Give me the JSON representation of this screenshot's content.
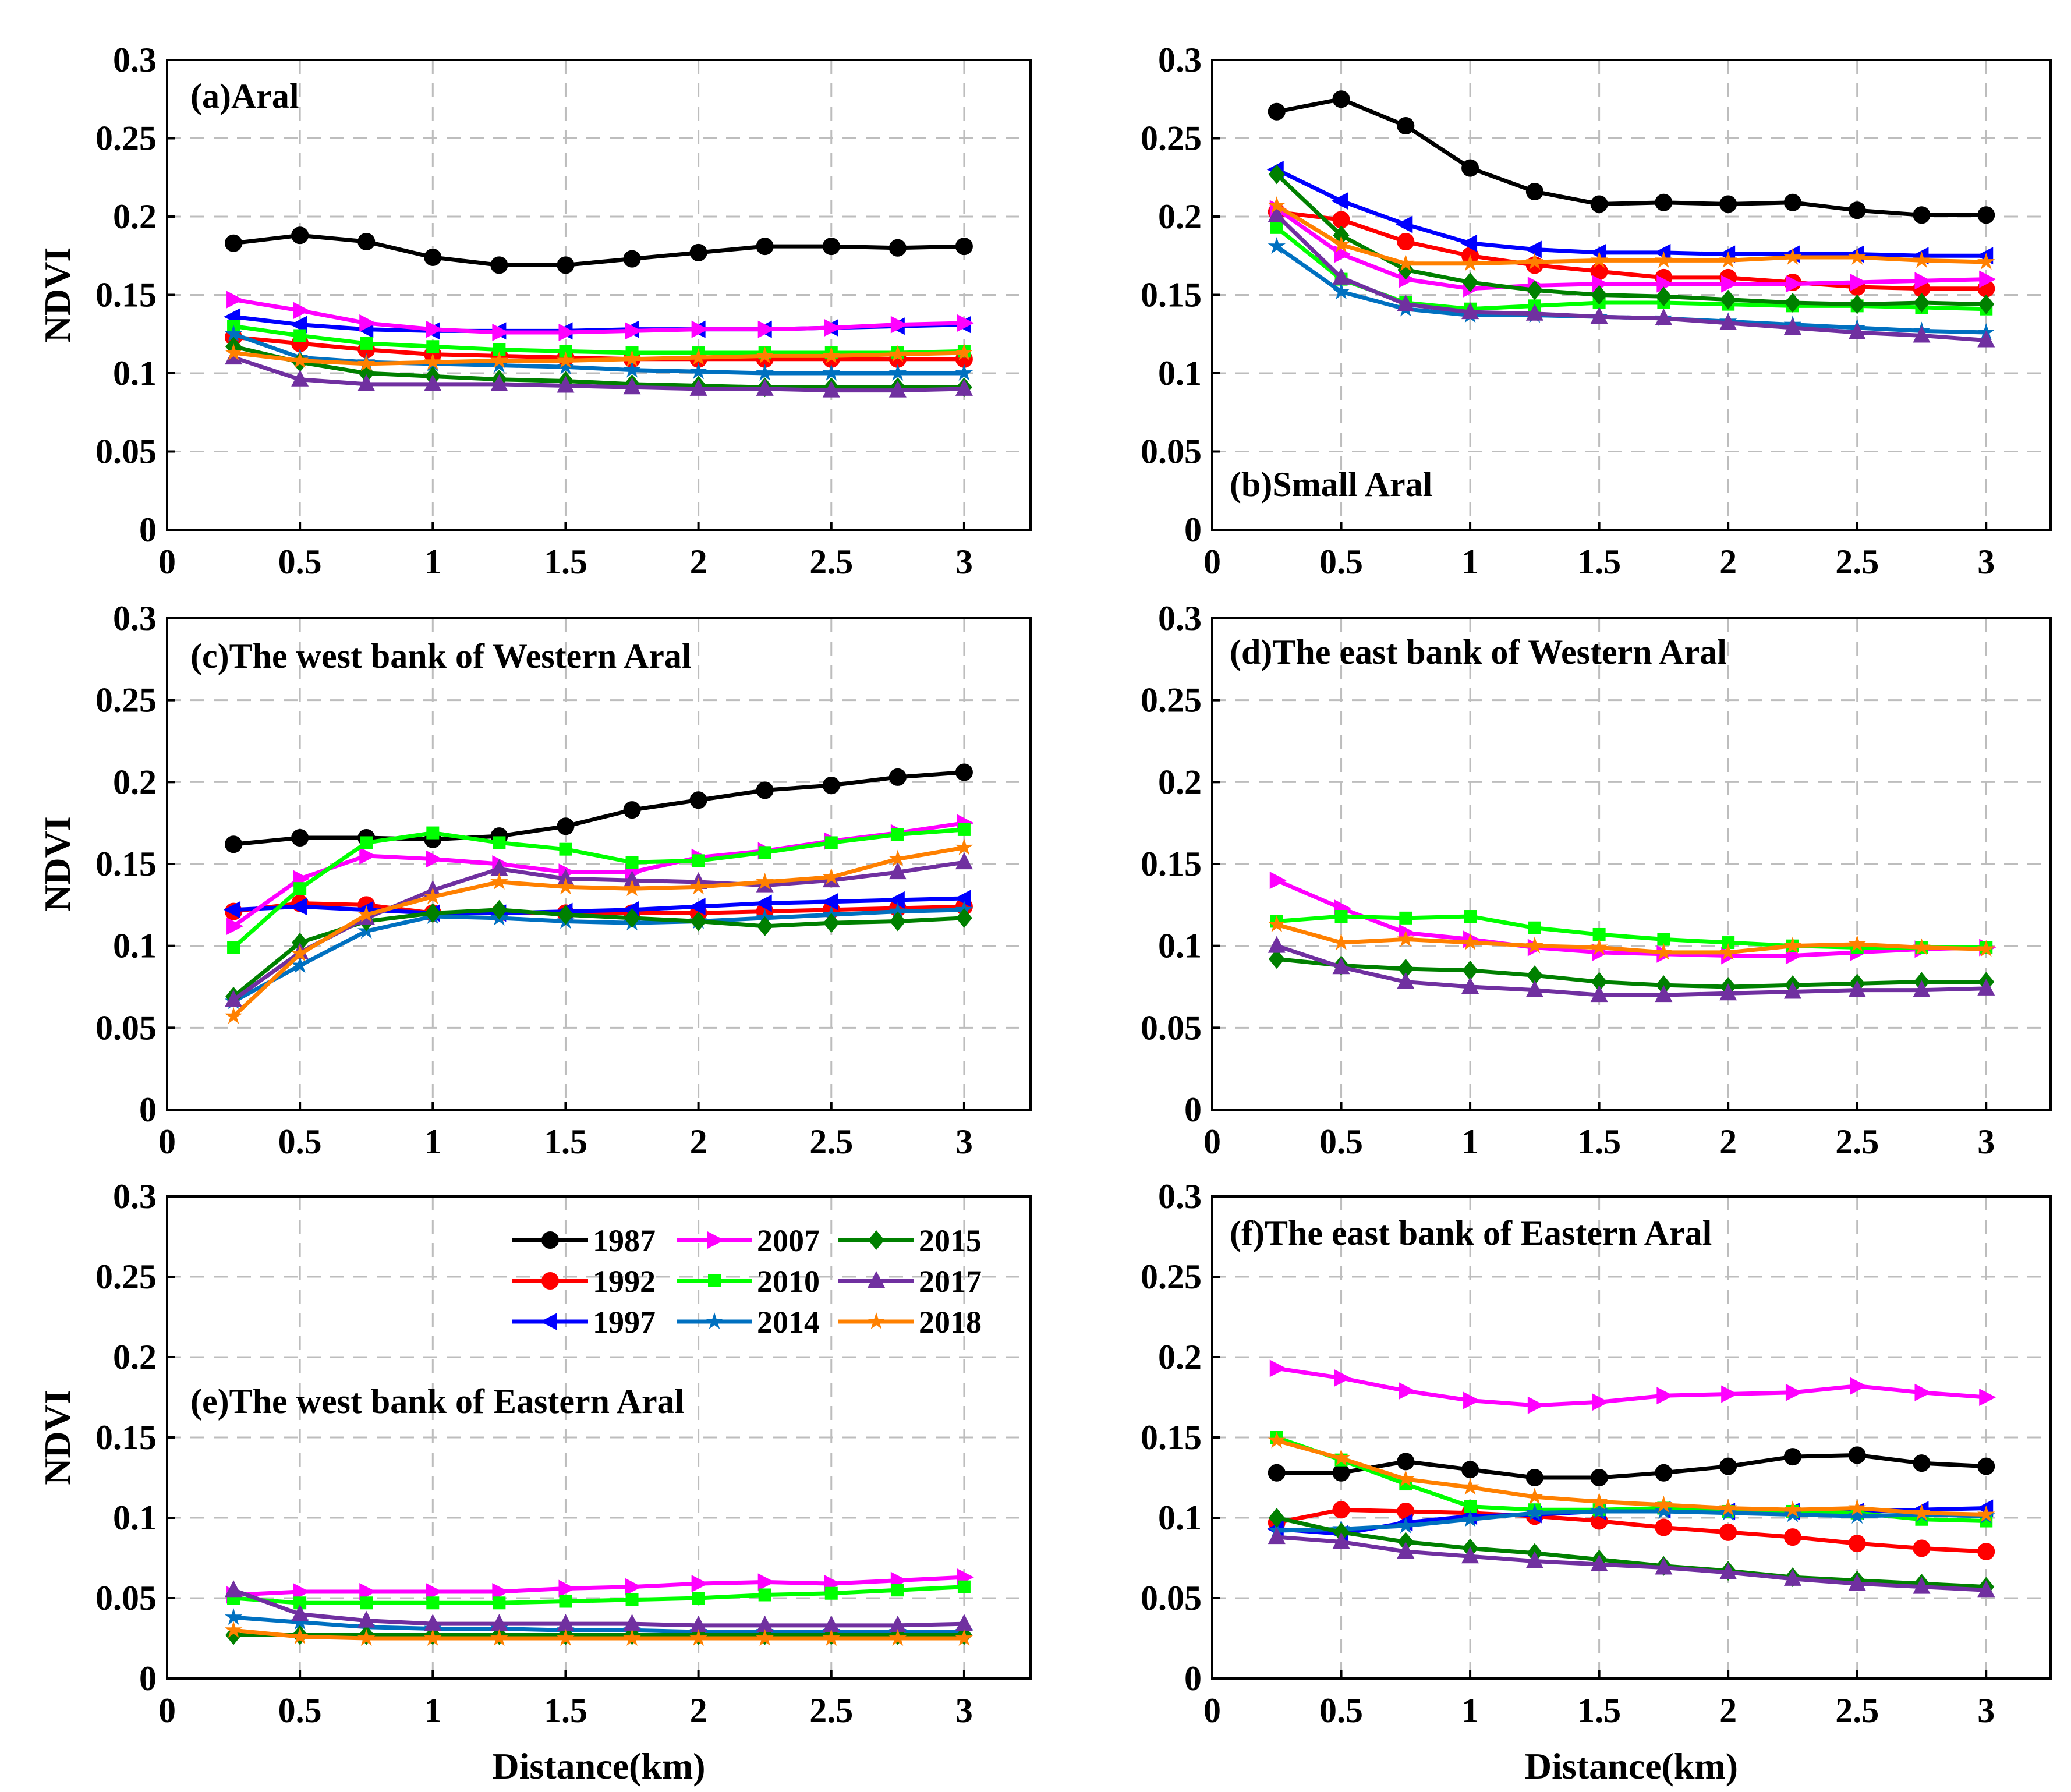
{
  "figure": {
    "x_title": "Distance(km)",
    "y_title": "NDVI",
    "legend": [
      {
        "label": "1987",
        "color": "#000000",
        "marker": "circle"
      },
      {
        "label": "1992",
        "color": "#ff0000",
        "marker": "circle"
      },
      {
        "label": "1997",
        "color": "#0000ff",
        "marker": "triangle-left"
      },
      {
        "label": "2007",
        "color": "#ff00ff",
        "marker": "triangle-right"
      },
      {
        "label": "2010",
        "color": "#00ff00",
        "marker": "square"
      },
      {
        "label": "2014",
        "color": "#0070c0",
        "marker": "star"
      },
      {
        "label": "2015",
        "color": "#008000",
        "marker": "diamond"
      },
      {
        "label": "2017",
        "color": "#7030a0",
        "marker": "triangle-up"
      },
      {
        "label": "2018",
        "color": "#ff8000",
        "marker": "star"
      }
    ]
  },
  "chart_data": [
    {
      "type": "line",
      "title": "(a)Aral",
      "xlabel": "",
      "ylabel": "NDVI",
      "xlim": [
        0,
        3.25
      ],
      "ylim": [
        0,
        0.3
      ],
      "xticks": [
        "0",
        "0.5",
        "1",
        "1.5",
        "2",
        "2.5",
        "3"
      ],
      "yticks": [
        "0",
        "0.05",
        "0.1",
        "0.15",
        "0.2",
        "0.25",
        "0.3"
      ],
      "x": [
        0.25,
        0.5,
        0.75,
        1.0,
        1.25,
        1.5,
        1.75,
        2.0,
        2.25,
        2.5,
        2.75,
        3.0
      ],
      "grid": true,
      "series": [
        {
          "name": "1987",
          "values": [
            0.183,
            0.188,
            0.184,
            0.174,
            0.169,
            0.169,
            0.173,
            0.177,
            0.181,
            0.181,
            0.18,
            0.181
          ]
        },
        {
          "name": "1992",
          "values": [
            0.123,
            0.119,
            0.115,
            0.112,
            0.111,
            0.11,
            0.109,
            0.109,
            0.109,
            0.109,
            0.109,
            0.109
          ]
        },
        {
          "name": "1997",
          "values": [
            0.136,
            0.131,
            0.128,
            0.127,
            0.127,
            0.127,
            0.128,
            0.128,
            0.128,
            0.129,
            0.13,
            0.131
          ]
        },
        {
          "name": "2007",
          "values": [
            0.147,
            0.14,
            0.132,
            0.128,
            0.126,
            0.126,
            0.127,
            0.128,
            0.128,
            0.129,
            0.131,
            0.132
          ]
        },
        {
          "name": "2010",
          "values": [
            0.13,
            0.124,
            0.119,
            0.117,
            0.115,
            0.114,
            0.113,
            0.113,
            0.113,
            0.113,
            0.113,
            0.114
          ]
        },
        {
          "name": "2014",
          "values": [
            0.125,
            0.11,
            0.107,
            0.106,
            0.105,
            0.104,
            0.102,
            0.101,
            0.1,
            0.1,
            0.1,
            0.1
          ]
        },
        {
          "name": "2015",
          "values": [
            0.117,
            0.107,
            0.1,
            0.098,
            0.096,
            0.095,
            0.093,
            0.092,
            0.091,
            0.091,
            0.091,
            0.091
          ]
        },
        {
          "name": "2017",
          "values": [
            0.11,
            0.096,
            0.093,
            0.093,
            0.093,
            0.092,
            0.091,
            0.09,
            0.09,
            0.089,
            0.089,
            0.09
          ]
        },
        {
          "name": "2018",
          "values": [
            0.113,
            0.108,
            0.106,
            0.107,
            0.108,
            0.108,
            0.109,
            0.11,
            0.111,
            0.111,
            0.112,
            0.113
          ]
        }
      ]
    },
    {
      "type": "line",
      "title": "(b)Small Aral",
      "xlabel": "",
      "ylabel": "",
      "xlim": [
        0,
        3.25
      ],
      "ylim": [
        0,
        0.3
      ],
      "xticks": [
        "0",
        "0.5",
        "1",
        "1.5",
        "2",
        "2.5",
        "3"
      ],
      "yticks": [
        "0",
        "0.05",
        "0.1",
        "0.15",
        "0.2",
        "0.25",
        "0.3"
      ],
      "x": [
        0.25,
        0.5,
        0.75,
        1.0,
        1.25,
        1.5,
        1.75,
        2.0,
        2.25,
        2.5,
        2.75,
        3.0
      ],
      "grid": true,
      "series": [
        {
          "name": "1987",
          "values": [
            0.267,
            0.275,
            0.258,
            0.231,
            0.216,
            0.208,
            0.209,
            0.208,
            0.209,
            0.204,
            0.201,
            0.201
          ]
        },
        {
          "name": "1992",
          "values": [
            0.203,
            0.198,
            0.184,
            0.175,
            0.169,
            0.165,
            0.161,
            0.161,
            0.158,
            0.155,
            0.154,
            0.154
          ]
        },
        {
          "name": "1997",
          "values": [
            0.23,
            0.21,
            0.195,
            0.183,
            0.179,
            0.177,
            0.177,
            0.176,
            0.176,
            0.176,
            0.175,
            0.175
          ]
        },
        {
          "name": "2007",
          "values": [
            0.205,
            0.176,
            0.16,
            0.154,
            0.156,
            0.157,
            0.157,
            0.157,
            0.157,
            0.158,
            0.159,
            0.16
          ]
        },
        {
          "name": "2010",
          "values": [
            0.193,
            0.16,
            0.145,
            0.141,
            0.143,
            0.145,
            0.145,
            0.144,
            0.143,
            0.143,
            0.142,
            0.141
          ]
        },
        {
          "name": "2014",
          "values": [
            0.181,
            0.152,
            0.141,
            0.137,
            0.137,
            0.136,
            0.135,
            0.133,
            0.131,
            0.129,
            0.127,
            0.126
          ]
        },
        {
          "name": "2015",
          "values": [
            0.227,
            0.188,
            0.166,
            0.158,
            0.153,
            0.15,
            0.149,
            0.147,
            0.145,
            0.144,
            0.145,
            0.144
          ]
        },
        {
          "name": "2017",
          "values": [
            0.201,
            0.161,
            0.144,
            0.139,
            0.138,
            0.136,
            0.135,
            0.132,
            0.129,
            0.126,
            0.124,
            0.121
          ]
        },
        {
          "name": "2018",
          "values": [
            0.207,
            0.182,
            0.17,
            0.17,
            0.171,
            0.172,
            0.172,
            0.172,
            0.174,
            0.174,
            0.172,
            0.171
          ]
        }
      ]
    },
    {
      "type": "line",
      "title": "(c)The west bank of Western Aral",
      "xlabel": "",
      "ylabel": "NDVI",
      "xlim": [
        0,
        3.25
      ],
      "ylim": [
        0,
        0.3
      ],
      "xticks": [
        "0",
        "0.5",
        "1",
        "1.5",
        "2",
        "2.5",
        "3"
      ],
      "yticks": [
        "0",
        "0.05",
        "0.1",
        "0.15",
        "0.2",
        "0.25",
        "0.3"
      ],
      "x": [
        0.25,
        0.5,
        0.75,
        1.0,
        1.25,
        1.5,
        1.75,
        2.0,
        2.25,
        2.5,
        2.75,
        3.0
      ],
      "grid": true,
      "series": [
        {
          "name": "1987",
          "values": [
            0.162,
            0.166,
            0.166,
            0.165,
            0.167,
            0.173,
            0.183,
            0.189,
            0.195,
            0.198,
            0.203,
            0.206
          ]
        },
        {
          "name": "1992",
          "values": [
            0.121,
            0.126,
            0.125,
            0.12,
            0.12,
            0.12,
            0.12,
            0.12,
            0.121,
            0.122,
            0.123,
            0.124
          ]
        },
        {
          "name": "1997",
          "values": [
            0.122,
            0.124,
            0.122,
            0.12,
            0.12,
            0.121,
            0.122,
            0.124,
            0.126,
            0.127,
            0.128,
            0.129
          ]
        },
        {
          "name": "2007",
          "values": [
            0.112,
            0.141,
            0.155,
            0.153,
            0.15,
            0.145,
            0.145,
            0.154,
            0.158,
            0.164,
            0.169,
            0.175
          ]
        },
        {
          "name": "2010",
          "values": [
            0.099,
            0.135,
            0.163,
            0.169,
            0.163,
            0.159,
            0.151,
            0.152,
            0.157,
            0.163,
            0.168,
            0.171
          ]
        },
        {
          "name": "2014",
          "values": [
            0.066,
            0.088,
            0.109,
            0.118,
            0.117,
            0.115,
            0.114,
            0.115,
            0.117,
            0.119,
            0.121,
            0.122
          ]
        },
        {
          "name": "2015",
          "values": [
            0.069,
            0.102,
            0.115,
            0.12,
            0.122,
            0.119,
            0.117,
            0.115,
            0.112,
            0.114,
            0.115,
            0.117
          ]
        },
        {
          "name": "2017",
          "values": [
            0.067,
            0.096,
            0.117,
            0.134,
            0.147,
            0.141,
            0.14,
            0.139,
            0.137,
            0.14,
            0.145,
            0.151
          ]
        },
        {
          "name": "2018",
          "values": [
            0.057,
            0.095,
            0.119,
            0.13,
            0.139,
            0.136,
            0.135,
            0.136,
            0.139,
            0.142,
            0.153,
            0.16
          ]
        }
      ]
    },
    {
      "type": "line",
      "title": "(d)The east bank of Western Aral",
      "xlabel": "",
      "ylabel": "",
      "xlim": [
        0,
        3.25
      ],
      "ylim": [
        0,
        0.3
      ],
      "xticks": [
        "0",
        "0.5",
        "1",
        "1.5",
        "2",
        "2.5",
        "3"
      ],
      "yticks": [
        "0",
        "0.05",
        "0.1",
        "0.15",
        "0.2",
        "0.25",
        "0.3"
      ],
      "x": [
        0.25,
        0.5,
        0.75,
        1.0,
        1.25,
        1.5,
        1.75,
        2.0,
        2.25,
        2.5,
        2.75,
        3.0
      ],
      "grid": true,
      "series": [
        {
          "name": "2007",
          "values": [
            0.14,
            0.123,
            0.108,
            0.104,
            0.099,
            0.096,
            0.095,
            0.094,
            0.094,
            0.096,
            0.098,
            0.099
          ]
        },
        {
          "name": "2010",
          "values": [
            0.115,
            0.118,
            0.117,
            0.118,
            0.111,
            0.107,
            0.104,
            0.102,
            0.1,
            0.099,
            0.099,
            0.099
          ]
        },
        {
          "name": "2015",
          "values": [
            0.092,
            0.088,
            0.086,
            0.085,
            0.082,
            0.078,
            0.076,
            0.075,
            0.076,
            0.077,
            0.078,
            0.078
          ]
        },
        {
          "name": "2017",
          "values": [
            0.1,
            0.087,
            0.078,
            0.075,
            0.073,
            0.07,
            0.07,
            0.071,
            0.072,
            0.073,
            0.073,
            0.074
          ]
        },
        {
          "name": "2018",
          "values": [
            0.113,
            0.102,
            0.104,
            0.102,
            0.1,
            0.099,
            0.096,
            0.096,
            0.1,
            0.101,
            0.099,
            0.098
          ]
        }
      ]
    },
    {
      "type": "line",
      "title": "(e)The west bank of Eastern Aral",
      "xlabel": "Distance(km)",
      "ylabel": "NDVI",
      "xlim": [
        0,
        3.25
      ],
      "ylim": [
        0,
        0.3
      ],
      "xticks": [
        "0",
        "0.5",
        "1",
        "1.5",
        "2",
        "2.5",
        "3"
      ],
      "yticks": [
        "0",
        "0.05",
        "0.1",
        "0.15",
        "0.2",
        "0.25",
        "0.3"
      ],
      "x": [
        0.25,
        0.5,
        0.75,
        1.0,
        1.25,
        1.5,
        1.75,
        2.0,
        2.25,
        2.5,
        2.75,
        3.0
      ],
      "grid": true,
      "series": [
        {
          "name": "2007",
          "values": [
            0.052,
            0.054,
            0.054,
            0.054,
            0.054,
            0.056,
            0.057,
            0.059,
            0.06,
            0.059,
            0.061,
            0.063
          ]
        },
        {
          "name": "2010",
          "values": [
            0.05,
            0.047,
            0.047,
            0.047,
            0.047,
            0.048,
            0.049,
            0.05,
            0.052,
            0.053,
            0.055,
            0.057
          ]
        },
        {
          "name": "2014",
          "values": [
            0.038,
            0.035,
            0.032,
            0.031,
            0.031,
            0.03,
            0.03,
            0.029,
            0.029,
            0.029,
            0.029,
            0.029
          ]
        },
        {
          "name": "2015",
          "values": [
            0.027,
            0.027,
            0.027,
            0.027,
            0.027,
            0.027,
            0.027,
            0.027,
            0.027,
            0.027,
            0.027,
            0.027
          ]
        },
        {
          "name": "2017",
          "values": [
            0.055,
            0.04,
            0.036,
            0.034,
            0.034,
            0.034,
            0.034,
            0.033,
            0.033,
            0.033,
            0.033,
            0.034
          ]
        },
        {
          "name": "2018",
          "values": [
            0.03,
            0.026,
            0.025,
            0.025,
            0.025,
            0.025,
            0.025,
            0.025,
            0.025,
            0.025,
            0.025,
            0.025
          ]
        }
      ]
    },
    {
      "type": "line",
      "title": "(f)The east bank of Eastern Aral",
      "xlabel": "Distance(km)",
      "ylabel": "",
      "xlim": [
        0,
        3.25
      ],
      "ylim": [
        0,
        0.3
      ],
      "xticks": [
        "0",
        "0.5",
        "1",
        "1.5",
        "2",
        "2.5",
        "3"
      ],
      "yticks": [
        "0",
        "0.05",
        "0.1",
        "0.15",
        "0.2",
        "0.25",
        "0.3"
      ],
      "x": [
        0.25,
        0.5,
        0.75,
        1.0,
        1.25,
        1.5,
        1.75,
        2.0,
        2.25,
        2.5,
        2.75,
        3.0
      ],
      "grid": true,
      "series": [
        {
          "name": "1987",
          "values": [
            0.128,
            0.128,
            0.135,
            0.13,
            0.125,
            0.125,
            0.128,
            0.132,
            0.138,
            0.139,
            0.134,
            0.132
          ]
        },
        {
          "name": "1992",
          "values": [
            0.097,
            0.105,
            0.104,
            0.103,
            0.101,
            0.098,
            0.094,
            0.091,
            0.088,
            0.084,
            0.081,
            0.079
          ]
        },
        {
          "name": "1997",
          "values": [
            0.093,
            0.09,
            0.097,
            0.101,
            0.102,
            0.104,
            0.105,
            0.104,
            0.104,
            0.104,
            0.105,
            0.106
          ]
        },
        {
          "name": "2007",
          "values": [
            0.193,
            0.187,
            0.179,
            0.173,
            0.17,
            0.172,
            0.176,
            0.177,
            0.178,
            0.182,
            0.178,
            0.175
          ]
        },
        {
          "name": "2010",
          "values": [
            0.15,
            0.136,
            0.121,
            0.107,
            0.105,
            0.105,
            0.106,
            0.104,
            0.104,
            0.103,
            0.099,
            0.098
          ]
        },
        {
          "name": "2014",
          "values": [
            0.092,
            0.093,
            0.095,
            0.099,
            0.103,
            0.104,
            0.104,
            0.103,
            0.102,
            0.101,
            0.102,
            0.101
          ]
        },
        {
          "name": "2015",
          "values": [
            0.1,
            0.091,
            0.085,
            0.081,
            0.078,
            0.074,
            0.07,
            0.067,
            0.063,
            0.061,
            0.059,
            0.057
          ]
        },
        {
          "name": "2017",
          "values": [
            0.088,
            0.085,
            0.079,
            0.076,
            0.073,
            0.071,
            0.069,
            0.066,
            0.062,
            0.059,
            0.057,
            0.055
          ]
        },
        {
          "name": "2018",
          "values": [
            0.148,
            0.137,
            0.124,
            0.119,
            0.113,
            0.11,
            0.108,
            0.106,
            0.105,
            0.106,
            0.103,
            0.102
          ]
        }
      ]
    }
  ]
}
